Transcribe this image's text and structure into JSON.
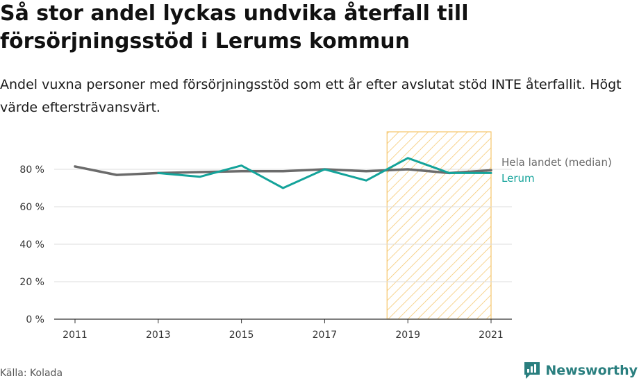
{
  "title": "Så stor andel lyckas undvika återfall till försörjningsstöd i Lerums kommun",
  "subtitle": "Andel vuxna personer med försörjningsstöd som ett år efter avslutat stöd INTE återfallit. Högt värde eftersträvansvärt.",
  "source": "Källa: Kolada",
  "brand": "Newsworthy",
  "colors": {
    "national": "#6b6b6b",
    "lerum": "#14a39a",
    "highlight": "#f5c56a",
    "grid": "#dddddd",
    "brand": "#2a7f7f"
  },
  "chart_data": {
    "type": "line",
    "x": [
      2011,
      2012,
      2013,
      2014,
      2015,
      2016,
      2017,
      2018,
      2019,
      2020,
      2021
    ],
    "series": [
      {
        "name": "Hela landet (median)",
        "values": [
          81.5,
          77,
          78,
          78.5,
          79,
          79,
          80,
          79,
          80,
          78,
          79.5
        ]
      },
      {
        "name": "Lerum",
        "values": [
          null,
          null,
          78,
          76,
          82,
          70,
          80,
          74,
          86,
          78,
          78
        ]
      }
    ],
    "ylim": [
      0,
      100
    ],
    "yticks": [
      0,
      20,
      40,
      60,
      80
    ],
    "ytick_labels": [
      "0 %",
      "20 %",
      "40 %",
      "60 %",
      "80 %"
    ],
    "xticks": [
      2011,
      2013,
      2015,
      2017,
      2019,
      2021
    ],
    "xtick_labels": [
      "2011",
      "2013",
      "2015",
      "2017",
      "2019",
      "2021"
    ],
    "highlight_range": [
      2018.5,
      2021
    ],
    "grid": true,
    "legend": "right, at line ends"
  }
}
